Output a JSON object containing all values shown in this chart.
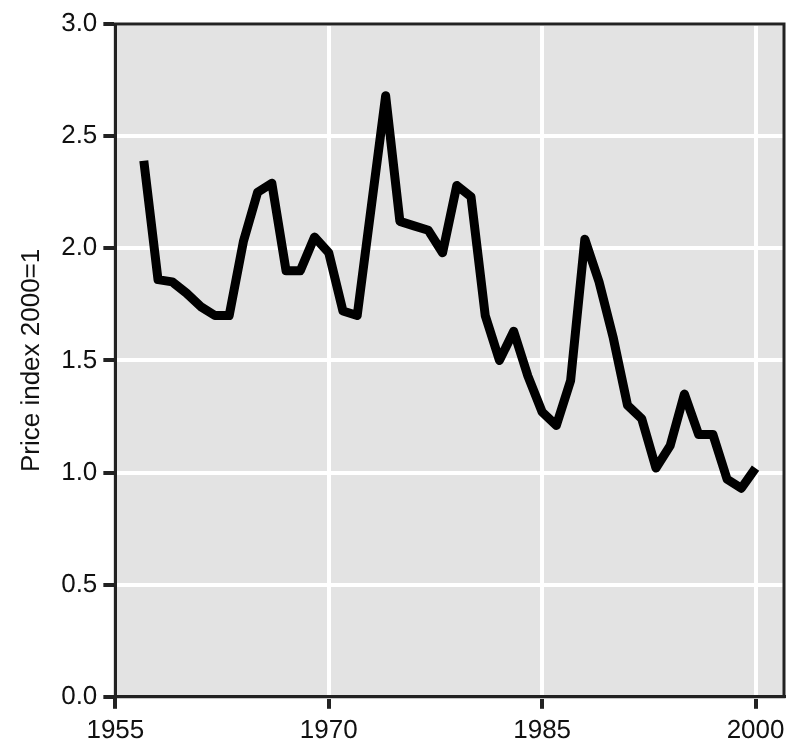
{
  "chart_data": {
    "type": "line",
    "ylabel": "Price index 2000=1",
    "x": [
      1957,
      1958,
      1959,
      1960,
      1961,
      1962,
      1963,
      1964,
      1965,
      1966,
      1967,
      1968,
      1969,
      1970,
      1971,
      1972,
      1973,
      1974,
      1975,
      1976,
      1977,
      1978,
      1979,
      1980,
      1981,
      1982,
      1983,
      1984,
      1985,
      1986,
      1987,
      1988,
      1989,
      1990,
      1991,
      1992,
      1993,
      1994,
      1995,
      1996,
      1997,
      1998,
      1999,
      2000
    ],
    "series": [
      {
        "color": "#000000",
        "values": [
          2.39,
          1.86,
          1.85,
          1.8,
          1.74,
          1.7,
          1.7,
          2.03,
          2.25,
          2.29,
          1.9,
          1.9,
          2.05,
          1.98,
          1.72,
          1.7,
          2.19,
          2.68,
          2.12,
          2.1,
          2.08,
          1.98,
          2.28,
          2.23,
          1.7,
          1.5,
          1.63,
          1.43,
          1.27,
          1.21,
          1.41,
          2.04,
          1.85,
          1.6,
          1.3,
          1.24,
          1.02,
          1.12,
          1.35,
          1.17,
          1.17,
          0.97,
          0.93,
          1.02
        ]
      }
    ],
    "xlim": [
      1955,
      2002
    ],
    "xticks": [
      1955,
      1970,
      1985,
      2000
    ],
    "ylim": [
      0,
      3
    ],
    "yticks": [
      {
        "value": 0,
        "label": "0.0"
      },
      0.5,
      {
        "value": 1,
        "label": "1.0"
      },
      1.5,
      {
        "value": 2,
        "label": "2.0"
      },
      2.5,
      {
        "value": 3,
        "label": "3.0"
      }
    ],
    "grid": true,
    "legend": false,
    "marker": "none",
    "line_style": "solid"
  }
}
